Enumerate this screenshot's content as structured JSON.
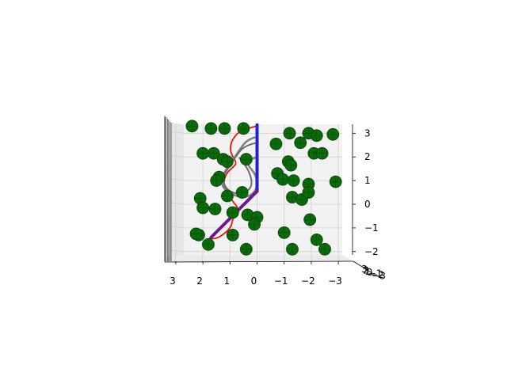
{
  "chart_data": {
    "type": "scatter",
    "projection": "3d",
    "view": "front (looking along the y axis)",
    "grid": true,
    "pane_color": "#f2f2f2",
    "grid_color": "#d0d0d0",
    "x_ticks": [
      "3",
      "2",
      "1",
      "0",
      "−1",
      "−2",
      "−3"
    ],
    "z_ticks": [
      "3",
      "2",
      "1",
      "0",
      "−1",
      "−2"
    ],
    "y_tick_stack": [
      "3",
      "2",
      "1",
      "0",
      "−1",
      "−2",
      "−3"
    ],
    "xlim": [
      -3.5,
      3.5
    ],
    "zlim": [
      -2.5,
      3.5
    ],
    "spheres": {
      "name": "",
      "color": "#0a6b0a",
      "edge_color": "#0f3d0f",
      "points": [
        {
          "x": 2.4,
          "z": 3.3
        },
        {
          "x": 1.7,
          "z": 3.2
        },
        {
          "x": 1.2,
          "z": 3.2
        },
        {
          "x": 0.5,
          "z": 3.2
        },
        {
          "x": -1.2,
          "z": 3.0
        },
        {
          "x": -1.9,
          "z": 3.0
        },
        {
          "x": -2.2,
          "z": 2.9
        },
        {
          "x": -2.8,
          "z": 2.95
        },
        {
          "x": -0.7,
          "z": 2.55
        },
        {
          "x": -1.6,
          "z": 2.6
        },
        {
          "x": 2.0,
          "z": 2.15
        },
        {
          "x": 1.6,
          "z": 2.15
        },
        {
          "x": 1.25,
          "z": 1.9
        },
        {
          "x": 1.1,
          "z": 1.8
        },
        {
          "x": 0.4,
          "z": 1.9
        },
        {
          "x": -1.15,
          "z": 1.8
        },
        {
          "x": -1.25,
          "z": 1.65
        },
        {
          "x": -2.1,
          "z": 2.15
        },
        {
          "x": -2.4,
          "z": 2.15
        },
        {
          "x": 1.4,
          "z": 1.15
        },
        {
          "x": 1.5,
          "z": 1.0
        },
        {
          "x": -0.75,
          "z": 1.3
        },
        {
          "x": -0.95,
          "z": 1.05
        },
        {
          "x": -1.35,
          "z": 1.0
        },
        {
          "x": -1.9,
          "z": 0.85
        },
        {
          "x": -2.9,
          "z": 0.95
        },
        {
          "x": 1.1,
          "z": 0.35
        },
        {
          "x": 0.55,
          "z": 0.5
        },
        {
          "x": 2.1,
          "z": 0.25
        },
        {
          "x": 2.0,
          "z": -0.15
        },
        {
          "x": 1.55,
          "z": -0.2
        },
        {
          "x": -1.3,
          "z": 0.3
        },
        {
          "x": -1.65,
          "z": 0.2
        },
        {
          "x": -1.9,
          "z": 0.5
        },
        {
          "x": 0.9,
          "z": -0.35
        },
        {
          "x": 0.35,
          "z": -0.45
        },
        {
          "x": 0.0,
          "z": -0.55
        },
        {
          "x": 0.1,
          "z": -0.85
        },
        {
          "x": -1.95,
          "z": -0.65
        },
        {
          "x": 2.15,
          "z": -1.3
        },
        {
          "x": 2.25,
          "z": -1.25
        },
        {
          "x": 0.9,
          "z": -1.3
        },
        {
          "x": -1.0,
          "z": -1.2
        },
        {
          "x": -2.2,
          "z": -1.5
        },
        {
          "x": 1.8,
          "z": -1.7
        },
        {
          "x": 0.4,
          "z": -1.9
        },
        {
          "x": -1.3,
          "z": -1.9
        },
        {
          "x": -2.5,
          "z": -1.9
        }
      ]
    },
    "curves": [
      {
        "name": "",
        "color": "#e8150c",
        "width": 1.8,
        "points": [
          {
            "x": 0.0,
            "z": 3.3
          },
          {
            "x": 0.6,
            "z": 3.15
          },
          {
            "x": 0.95,
            "z": 2.7
          },
          {
            "x": 1.0,
            "z": 2.2
          },
          {
            "x": 0.75,
            "z": 1.75
          },
          {
            "x": 0.85,
            "z": 1.6
          },
          {
            "x": 1.15,
            "z": 1.3
          },
          {
            "x": 1.25,
            "z": 0.85
          },
          {
            "x": 1.05,
            "z": 0.35
          },
          {
            "x": 0.6,
            "z": -0.3
          },
          {
            "x": 0.9,
            "z": -0.55
          },
          {
            "x": 0.95,
            "z": -1.0
          },
          {
            "x": 1.45,
            "z": -1.45
          },
          {
            "x": 1.75,
            "z": -1.45
          }
        ]
      },
      {
        "name": "",
        "color": "#808080",
        "width": 2.5,
        "points": [
          {
            "x": 0.0,
            "z": 2.85
          },
          {
            "x": 0.35,
            "z": 2.75
          },
          {
            "x": 0.65,
            "z": 2.3
          },
          {
            "x": 0.95,
            "z": 1.75
          },
          {
            "x": 1.2,
            "z": 1.4
          },
          {
            "x": 1.35,
            "z": 0.8
          },
          {
            "x": 0.95,
            "z": 0.4
          },
          {
            "x": 0.4,
            "z": 0.25
          },
          {
            "x": 0.0,
            "z": 0.6
          },
          {
            "x": 0.0,
            "z": 1.2
          },
          {
            "x": 0.45,
            "z": 1.8
          },
          {
            "x": 0.0,
            "z": 2.0
          }
        ]
      },
      {
        "name": "",
        "color": "#6c6c6c",
        "width": 2.0,
        "points": [
          {
            "x": 0.0,
            "z": 2.6
          },
          {
            "x": 0.45,
            "z": 2.5
          },
          {
            "x": 0.8,
            "z": 2.0
          },
          {
            "x": 1.05,
            "z": 1.55
          },
          {
            "x": 1.3,
            "z": 1.1
          },
          {
            "x": 1.1,
            "z": 0.55
          },
          {
            "x": 0.55,
            "z": 0.4
          },
          {
            "x": 0.15,
            "z": 0.75
          },
          {
            "x": 0.3,
            "z": 1.45
          },
          {
            "x": 0.65,
            "z": 1.95
          }
        ]
      },
      {
        "name": "",
        "color": "#2222c8",
        "width": 4.0,
        "points": [
          {
            "x": 0.0,
            "z": 3.35
          },
          {
            "x": 0.0,
            "z": 0.55
          }
        ]
      },
      {
        "name": "",
        "color": "#6a1a8c",
        "width": 4.0,
        "points": [
          {
            "x": 0.0,
            "z": 0.55
          },
          {
            "x": 1.7,
            "z": -1.4
          }
        ]
      }
    ]
  }
}
